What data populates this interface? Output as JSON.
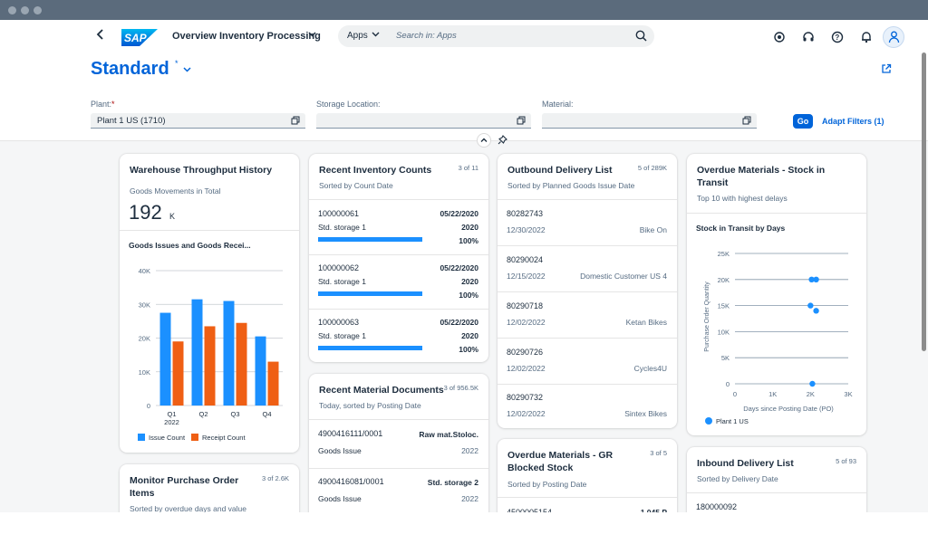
{
  "shell": {
    "app_title": "Overview Inventory Processing",
    "logo_text": "SAP",
    "search_scope": "Apps",
    "search_placeholder": "Search in: Apps"
  },
  "page": {
    "variant": "Standard",
    "variant_modified": "*"
  },
  "filters": {
    "plant_label": "Plant:",
    "plant_required": "*",
    "plant_value": "Plant 1 US (1710)",
    "storage_label": "Storage Location:",
    "storage_value": "",
    "material_label": "Material:",
    "material_value": "",
    "go_label": "Go",
    "adapt_label": "Adapt Filters (1)"
  },
  "cards": {
    "warehouse": {
      "title": "Warehouse Throughput History",
      "subtitle": "Goods Movements in Total",
      "kpi_value": "192",
      "kpi_unit": "K",
      "chart_title": "Goods Issues and Goods Recei...",
      "legend_issue": "Issue Count",
      "legend_receipt": "Receipt Count"
    },
    "inventory": {
      "title": "Recent Inventory Counts",
      "count": "3 of 11",
      "subtitle": "Sorted by Count Date",
      "items": [
        {
          "id": "100000061",
          "location": "Std. storage 1",
          "date": "05/22/2020",
          "year": "2020",
          "pct": "100%",
          "progress": 1.0
        },
        {
          "id": "100000062",
          "location": "Std. storage 1",
          "date": "05/22/2020",
          "year": "2020",
          "pct": "100%",
          "progress": 1.0
        },
        {
          "id": "100000063",
          "location": "Std. storage 1",
          "date": "05/22/2020",
          "year": "2020",
          "pct": "100%",
          "progress": 1.0
        }
      ]
    },
    "material_docs": {
      "title": "Recent Material Documents",
      "count": "3 of 956.5K",
      "subtitle": "Today, sorted by Posting Date",
      "items": [
        {
          "id": "4900416111/0001",
          "type": "Goods Issue",
          "right": "Raw mat.Stoloc.",
          "year": "2022"
        },
        {
          "id": "4900416081/0001",
          "type": "Goods Issue",
          "right": "Std. storage 2",
          "year": "2022"
        }
      ]
    },
    "outbound": {
      "title": "Outbound Delivery List",
      "count": "5 of 289K",
      "subtitle": "Sorted by Planned Goods Issue Date",
      "items": [
        {
          "id": "80282743",
          "date": "12/30/2022",
          "customer": "Bike On"
        },
        {
          "id": "80290024",
          "date": "12/15/2022",
          "customer": "Domestic Customer US 4"
        },
        {
          "id": "80290718",
          "date": "12/02/2022",
          "customer": "Ketan Bikes"
        },
        {
          "id": "80290726",
          "date": "12/02/2022",
          "customer": "Cycles4U"
        },
        {
          "id": "80290732",
          "date": "12/02/2022",
          "customer": "Sintex Bikes"
        }
      ]
    },
    "overdue_gr": {
      "title_line1": "Overdue Materials - GR",
      "title_line2": "Blocked Stock",
      "count": "3 of 5",
      "subtitle": "Sorted by Posting Date",
      "peek_id": "4500005154",
      "peek_right": "1,045 P"
    },
    "overdue_transit": {
      "title_line1": "Overdue Materials - Stock in",
      "title_line2": "Transit",
      "subtitle": "Top 10 with highest delays",
      "chart_title": "Stock in Transit by Days",
      "legend": "Plant 1 US"
    },
    "purchase": {
      "title_line1": "Monitor Purchase Order",
      "title_line2": "Items",
      "count": "3 of 2.6K",
      "subtitle": "Sorted by overdue days and value"
    },
    "inbound": {
      "title": "Inbound Delivery List",
      "count": "5 of 93",
      "subtitle": "Sorted by Delivery Date",
      "first_id": "180000092"
    }
  },
  "colors": {
    "accent": "#0064d9",
    "issue": "#1b90ff",
    "receipt": "#ef5f14",
    "text": "#1d2d3e"
  },
  "icons": [
    "chevron-left-icon",
    "chevron-down-icon",
    "search-icon",
    "copilot-icon",
    "headset-icon",
    "help-icon",
    "bell-icon",
    "user-icon",
    "share-icon",
    "value-help-icon",
    "collapse-up-icon",
    "pin-icon"
  ],
  "chart_data": [
    {
      "type": "bar",
      "title": "Goods Issues and Goods Recei...",
      "categories": [
        "Q1 2022",
        "Q2",
        "Q3",
        "Q4"
      ],
      "series": [
        {
          "name": "Issue Count",
          "values": [
            27500,
            31500,
            31000,
            20500
          ]
        },
        {
          "name": "Receipt Count",
          "values": [
            19000,
            23500,
            24500,
            13000
          ]
        }
      ],
      "y_ticks": [
        "0",
        "10K",
        "20K",
        "30K",
        "40K"
      ],
      "ylim": [
        0,
        40000
      ],
      "legend": "bottom"
    },
    {
      "type": "scatter",
      "title": "Stock in Transit by Days",
      "xlabel": "Days since Posting Date (PO)",
      "ylabel": "Purchase Order Quantity",
      "x_ticks": [
        "0",
        "1K",
        "2K",
        "3K"
      ],
      "y_ticks": [
        "0",
        "5K",
        "10K",
        "15K",
        "20K",
        "25K"
      ],
      "xlim": [
        0,
        3000
      ],
      "ylim": [
        0,
        25000
      ],
      "series": [
        {
          "name": "Plant 1 US",
          "points": [
            [
              2030,
              20000
            ],
            [
              2150,
              20000
            ],
            [
              2000,
              15000
            ],
            [
              2150,
              14000
            ],
            [
              2050,
              0
            ]
          ]
        }
      ],
      "legend": "bottom-left"
    }
  ]
}
